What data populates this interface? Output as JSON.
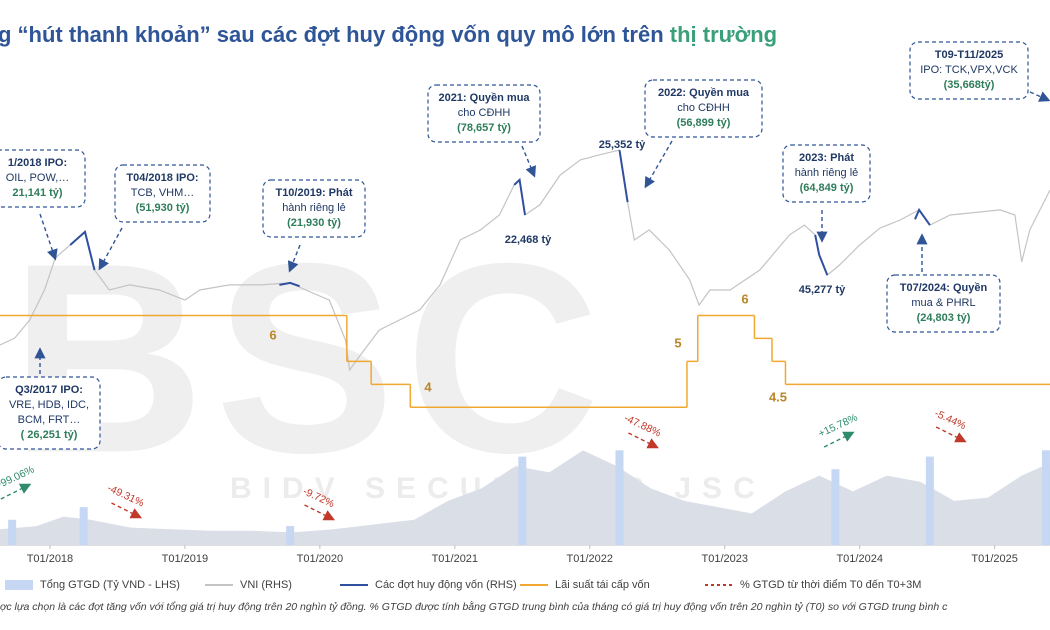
{
  "chart_data": {
    "type": "combo",
    "title": "g “hút thanh khoản” sau các đợt huy động vốn quy mô lớn trên",
    "title_highlight": "thị trường",
    "title_color": "#2e5597",
    "title_highlight_color": "#3aa07a",
    "watermark": "BSC",
    "watermark_sub": "BIDV SECURITIES JSC",
    "xlim": [
      2017.63,
      2025.41
    ],
    "xticks": [
      {
        "value": 2018,
        "label": "T01/2018"
      },
      {
        "value": 2019,
        "label": "T01/2019"
      },
      {
        "value": 2020,
        "label": "T01/2020"
      },
      {
        "value": 2021,
        "label": "T01/2021"
      },
      {
        "value": 2022,
        "label": "T01/2022"
      },
      {
        "value": 2023,
        "label": "T01/2023"
      },
      {
        "value": 2024,
        "label": "T01/2024"
      },
      {
        "value": 2025,
        "label": "T01/2025"
      }
    ],
    "ylim": [
      0,
      160000
    ],
    "y2lim": [
      0,
      2000
    ],
    "y3lim": [
      1,
      12
    ],
    "legend": "bottom",
    "series": [
      {
        "name": "Tổng GTGD (Tỷ VND - LHS)",
        "type": "area",
        "color": "#d9dee7",
        "x": [
          2017.63,
          2017.9,
          2018.1,
          2018.3,
          2018.6,
          2018.9,
          2019.2,
          2019.5,
          2019.8,
          2020.1,
          2020.4,
          2020.7,
          2020.95,
          2021.2,
          2021.45,
          2021.7,
          2021.95,
          2022.2,
          2022.45,
          2022.7,
          2022.95,
          2023.2,
          2023.45,
          2023.7,
          2023.95,
          2024.2,
          2024.45,
          2024.7,
          2024.95,
          2025.2,
          2025.41
        ],
        "values": [
          5000,
          6000,
          9000,
          8000,
          5500,
          5000,
          4500,
          4500,
          4000,
          5000,
          6500,
          8000,
          14000,
          18000,
          25000,
          23000,
          30000,
          25000,
          18000,
          14000,
          12000,
          10000,
          17000,
          22000,
          17000,
          22000,
          20000,
          14000,
          15000,
          22000,
          26000
        ],
        "highlight_color": "#c5d7f2",
        "highlight_x": [
          2017.72,
          2018.25,
          2019.78,
          2021.5,
          2022.22,
          2023.82,
          2024.52,
          2025.38
        ],
        "highlight_values": [
          8000,
          12000,
          6000,
          28000,
          30000,
          24000,
          28000,
          30000
        ]
      },
      {
        "name": "VNI (RHS)",
        "type": "line",
        "axis": "y2",
        "color": "#c4c4c4",
        "x": [
          2017.63,
          2017.74,
          2017.85,
          2017.96,
          2018.04,
          2018.15,
          2018.26,
          2018.33,
          2018.44,
          2018.59,
          2018.81,
          2019.0,
          2019.11,
          2019.33,
          2019.56,
          2019.78,
          2019.93,
          2020.07,
          2020.19,
          2020.22,
          2020.3,
          2020.44,
          2020.59,
          2020.74,
          2020.89,
          2021.04,
          2021.19,
          2021.33,
          2021.44,
          2021.48,
          2021.52,
          2021.63,
          2021.78,
          2021.93,
          2022.07,
          2022.22,
          2022.28,
          2022.33,
          2022.44,
          2022.59,
          2022.74,
          2022.81,
          2022.89,
          2023.04,
          2023.26,
          2023.48,
          2023.59,
          2023.67,
          2023.7,
          2023.76,
          2023.85,
          2024.0,
          2024.15,
          2024.3,
          2024.44,
          2024.52,
          2024.67,
          2024.89,
          2025.04,
          2025.15,
          2025.2,
          2025.26,
          2025.41
        ],
        "values": [
          792,
          820,
          891,
          1010,
          1137,
          1188,
          1240,
          1089,
          1010,
          1030,
          1010,
          970,
          1010,
          1030,
          1030,
          1038,
          1002,
          970,
          812,
          693,
          752,
          851,
          891,
          931,
          1030,
          1208,
          1248,
          1307,
          1426,
          1446,
          1307,
          1347,
          1465,
          1525,
          1545,
          1564,
          1358,
          1208,
          1248,
          1168,
          1050,
          950,
          1010,
          1010,
          1089,
          1228,
          1267,
          1228,
          1149,
          1069,
          1109,
          1188,
          1255,
          1287,
          1327,
          1267,
          1307,
          1319,
          1327,
          1307,
          1121,
          1248,
          1406
        ]
      },
      {
        "name": "Các đợt huy động vốn (RHS)",
        "type": "line",
        "axis": "y2",
        "color": "#2f4f9f",
        "x": [
          2018.15,
          2018.26,
          2018.33,
          null,
          2019.7,
          2019.78,
          2019.85,
          null,
          2021.44,
          2021.48,
          2021.52,
          null,
          2022.22,
          2022.28,
          null,
          2023.67,
          2023.7,
          2023.76,
          null,
          2024.41,
          2024.44,
          2024.52
        ],
        "values": [
          1188,
          1240,
          1089,
          null,
          1030,
          1038,
          1025,
          null,
          1426,
          1446,
          1307,
          null,
          1564,
          1358,
          null,
          1228,
          1149,
          1069,
          null,
          1290,
          1327,
          1267
        ]
      },
      {
        "name": "Lãi suất tái cấp vốn",
        "type": "step",
        "axis": "y3",
        "color": "#f0a830",
        "label_color": "#b9862a",
        "x": [
          2017.63,
          2020.2,
          2020.38,
          2020.67,
          2022.72,
          2022.8,
          2023.22,
          2023.35,
          2023.45
        ],
        "values": [
          6,
          5,
          4.5,
          4,
          5,
          6,
          5.5,
          5,
          4.5
        ],
        "value_labels": [
          "6",
          null,
          null,
          "4",
          "5",
          "6",
          null,
          null,
          "4.5"
        ]
      },
      {
        "name": "% GTGD từ thời điểm T0 đến T0+3M",
        "type": "arrow",
        "color": "#c0392b",
        "positive_color": "#2e8b6b",
        "x": [
          2017.74,
          2018.56,
          2019.99,
          2022.39,
          2023.84,
          2024.67
        ],
        "values": [
          99.06,
          -49.31,
          -9.72,
          -47.88,
          15.78,
          -5.44
        ],
        "value_labels": [
          "+99.06%",
          "-49.31%",
          "-9.72%",
          "-47.88%",
          "+15.78%",
          "-5.44%"
        ]
      }
    ],
    "callouts": [
      {
        "lines": [
          "1/2018 IPO:",
          "OIL, POW,…",
          "21,141 tỷ)"
        ]
      },
      {
        "lines": [
          "T04/2018 IPO:",
          "TCB, VHM…",
          "(51,930 tỷ)"
        ]
      },
      {
        "lines": [
          "T10/2019: Phát",
          "hành riêng lẻ",
          "(21,930 tỷ)"
        ]
      },
      {
        "lines": [
          "2021: Quyền mua",
          "cho CĐHH",
          "(78,657 tỷ)"
        ]
      },
      {
        "lines": [
          "2022: Quyền mua",
          "cho CĐHH",
          "(56,899 tỷ)"
        ]
      },
      {
        "lines": [
          "2023: Phát",
          "hành riêng lẻ",
          "(64,849 tỷ)"
        ]
      },
      {
        "lines": [
          "T09-T11/2025",
          "IPO: TCK,VPX,VCK",
          "(35,668tỷ)"
        ]
      },
      {
        "lines": [
          "Q3/2017 IPO:",
          "VRE, HDB, IDC,",
          "BCM, FRT…",
          "( 26,251 tỷ)"
        ]
      },
      {
        "lines": [
          "T07/2024: Quyền",
          "mua & PHRL",
          "(24,803 tỷ)"
        ]
      }
    ],
    "point_labels": [
      "25,352 tỷ",
      "22,468 tỷ",
      "45,277 tỷ"
    ],
    "footnote": "ợc lựa chọn là các đợt tăng vốn với tổng giá trị huy động trên 20 nghìn tỷ đồng. % GTGD được tính bằng GTGD trung bình của tháng có giá trị huy động vốn trên 20 nghìn tỷ (T0) so với GTGD trung bình c"
  }
}
